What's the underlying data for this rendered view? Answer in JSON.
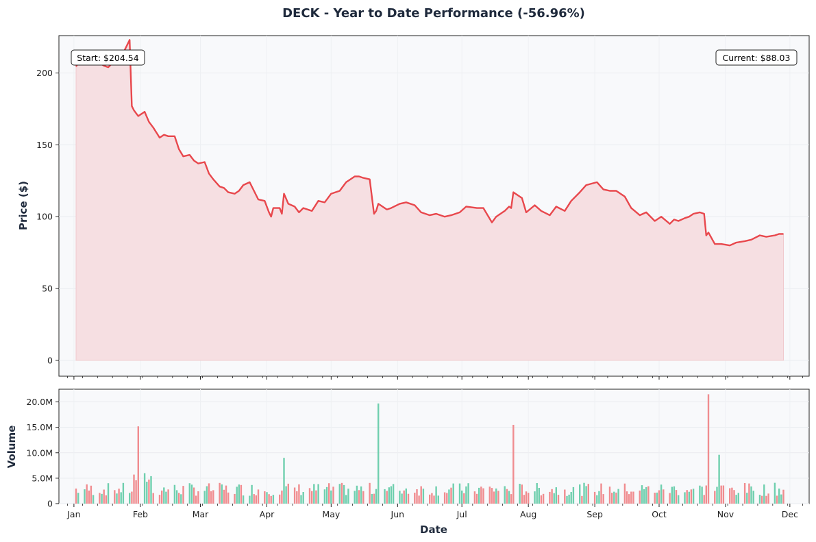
{
  "chart_data": {
    "title": "DECK - Year to Date Performance (-56.96%)",
    "xlabel": "Date",
    "start_annotation": "Start: $204.54",
    "current_annotation": "Current: $88.03",
    "start_price": 204.54,
    "current_price": 88.03,
    "colors": {
      "line": "#e8484d",
      "fill": "#f6dfe2",
      "volume_up": "#6fcfae",
      "volume_down": "#f08c8f",
      "plot_bg": "#f8f9fb"
    },
    "price_panel": {
      "type": "area",
      "ylabel": "Price ($)",
      "ylim": [
        -11,
        226
      ],
      "yticks": [
        0,
        50,
        100,
        150,
        200
      ],
      "ytick_labels": [
        "0",
        "50",
        "100",
        "150",
        "200"
      ],
      "grid": true,
      "series": [
        {
          "x": [
            "2025-01-02",
            "2025-01-03",
            "2025-01-06",
            "2025-01-08",
            "2025-01-10",
            "2025-01-13",
            "2025-01-15",
            "2025-01-17",
            "2025-01-21",
            "2025-01-23",
            "2025-01-24",
            "2025-01-27",
            "2025-01-28",
            "2025-01-29",
            "2025-01-30",
            "2025-01-31",
            "2025-02-03",
            "2025-02-05",
            "2025-02-07",
            "2025-02-10",
            "2025-02-12",
            "2025-02-14",
            "2025-02-17",
            "2025-02-19",
            "2025-02-21",
            "2025-02-24",
            "2025-02-26",
            "2025-02-28",
            "2025-03-03",
            "2025-03-05",
            "2025-03-07",
            "2025-03-10",
            "2025-03-12",
            "2025-03-14",
            "2025-03-17",
            "2025-03-19",
            "2025-03-21",
            "2025-03-24",
            "2025-03-26",
            "2025-03-28",
            "2025-03-31",
            "2025-04-02",
            "2025-04-03",
            "2025-04-04",
            "2025-04-07",
            "2025-04-08",
            "2025-04-09",
            "2025-04-11",
            "2025-04-14",
            "2025-04-16",
            "2025-04-18",
            "2025-04-22",
            "2025-04-25",
            "2025-04-28",
            "2025-05-01",
            "2025-05-05",
            "2025-05-08",
            "2025-05-12",
            "2025-05-14",
            "2025-05-16",
            "2025-05-19",
            "2025-05-21",
            "2025-05-22",
            "2025-05-23",
            "2025-05-27",
            "2025-05-29",
            "2025-06-02",
            "2025-06-05",
            "2025-06-09",
            "2025-06-12",
            "2025-06-16",
            "2025-06-19",
            "2025-06-23",
            "2025-06-26",
            "2025-06-30",
            "2025-07-03",
            "2025-07-08",
            "2025-07-11",
            "2025-07-15",
            "2025-07-17",
            "2025-07-21",
            "2025-07-23",
            "2025-07-24",
            "2025-07-25",
            "2025-07-29",
            "2025-07-31",
            "2025-08-04",
            "2025-08-07",
            "2025-08-11",
            "2025-08-14",
            "2025-08-18",
            "2025-08-21",
            "2025-08-25",
            "2025-08-28",
            "2025-09-02",
            "2025-09-05",
            "2025-09-08",
            "2025-09-11",
            "2025-09-15",
            "2025-09-18",
            "2025-09-22",
            "2025-09-25",
            "2025-09-29",
            "2025-10-02",
            "2025-10-06",
            "2025-10-08",
            "2025-10-10",
            "2025-10-13",
            "2025-10-15",
            "2025-10-17",
            "2025-10-20",
            "2025-10-22",
            "2025-10-23",
            "2025-10-24",
            "2025-10-27",
            "2025-10-30",
            "2025-11-03",
            "2025-11-06",
            "2025-11-10",
            "2025-11-13",
            "2025-11-17",
            "2025-11-20",
            "2025-11-24",
            "2025-11-26",
            "2025-11-28"
          ],
          "values": [
            204.5,
            207,
            208,
            206,
            208,
            207,
            205,
            204,
            210,
            212,
            214,
            223,
            177,
            174,
            172,
            170,
            173,
            166,
            162,
            155,
            157,
            156,
            156,
            147,
            142,
            143,
            139,
            137,
            138,
            130,
            126,
            121,
            120,
            117,
            116,
            118,
            122,
            124,
            118,
            112,
            111,
            103,
            100,
            106,
            106,
            102,
            116,
            109,
            107,
            103,
            106,
            104,
            111,
            110,
            116,
            118,
            124,
            128,
            128,
            127,
            126,
            102,
            104,
            109,
            105,
            106,
            109,
            110,
            108,
            103,
            101,
            102,
            100,
            101,
            103,
            107,
            106,
            106,
            96,
            100,
            104,
            107,
            106,
            117,
            113,
            103,
            108,
            104,
            101,
            107,
            104,
            111,
            117,
            122,
            124,
            119,
            118,
            118,
            114,
            106,
            101,
            103,
            97,
            100,
            95,
            98,
            97,
            99,
            100,
            102,
            103,
            102,
            87,
            89,
            81,
            81,
            80,
            82,
            83,
            84,
            87,
            86,
            87,
            88,
            88
          ]
        }
      ]
    },
    "volume_panel": {
      "type": "bar",
      "ylabel": "Volume",
      "ylim": [
        0,
        22500000
      ],
      "yticks": [
        0,
        5000000,
        10000000,
        15000000,
        20000000
      ],
      "ytick_labels": [
        "0",
        "5.0M",
        "10.0M",
        "15.0M",
        "20.0M"
      ],
      "grid": true,
      "spikes": [
        {
          "x": "2025-01-31",
          "value": 15200000,
          "direction": "down"
        },
        {
          "x": "2025-05-23",
          "value": 19700000,
          "direction": "up"
        },
        {
          "x": "2025-07-25",
          "value": 15500000,
          "direction": "down"
        },
        {
          "x": "2025-10-24",
          "value": 21500000,
          "direction": "down"
        },
        {
          "x": "2025-10-29",
          "value": 9600000,
          "direction": "up"
        },
        {
          "x": "2025-04-09",
          "value": 9000000,
          "direction": "up"
        }
      ]
    },
    "x_axis": {
      "range": [
        "2024-12-25",
        "2025-12-10"
      ],
      "tick_labels": [
        "Jan",
        "Feb",
        "Mar",
        "Apr",
        "May",
        "Jun",
        "Jul",
        "Aug",
        "Sep",
        "Oct",
        "Nov",
        "Dec"
      ],
      "tick_dates": [
        "2025-01-01",
        "2025-02-01",
        "2025-03-01",
        "2025-04-01",
        "2025-05-01",
        "2025-06-01",
        "2025-07-01",
        "2025-08-01",
        "2025-09-01",
        "2025-10-01",
        "2025-11-01",
        "2025-12-01"
      ]
    }
  }
}
